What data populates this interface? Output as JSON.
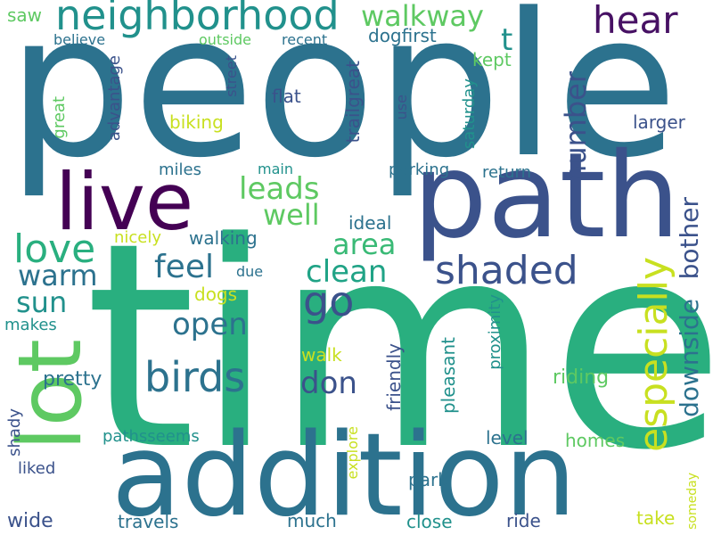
{
  "words": [
    {
      "text": "people",
      "color": "#2c728e"
    },
    {
      "text": "time",
      "color": "#29af7f"
    },
    {
      "text": "path",
      "color": "#3b528b"
    },
    {
      "text": "addition",
      "color": "#2c728e"
    },
    {
      "text": "live",
      "color": "#440154"
    },
    {
      "text": "lot",
      "color": "#5ec962"
    },
    {
      "text": "neighborhood",
      "color": "#21918c"
    },
    {
      "text": "walkway",
      "color": "#5ec962"
    },
    {
      "text": "hear",
      "color": "#471164"
    },
    {
      "text": "t",
      "color": "#21918c"
    },
    {
      "text": "leads",
      "color": "#5ec962"
    },
    {
      "text": "well",
      "color": "#5ec962"
    },
    {
      "text": "love",
      "color": "#29af7f"
    },
    {
      "text": "feel",
      "color": "#2c728e"
    },
    {
      "text": "area",
      "color": "#3aba76"
    },
    {
      "text": "shaded",
      "color": "#3b528b"
    },
    {
      "text": "clean",
      "color": "#20a386"
    },
    {
      "text": "warm",
      "color": "#2c728e"
    },
    {
      "text": "sun",
      "color": "#21918c"
    },
    {
      "text": "go",
      "color": "#3b528b"
    },
    {
      "text": "open",
      "color": "#2c728e"
    },
    {
      "text": "birds",
      "color": "#2c728e"
    },
    {
      "text": "don",
      "color": "#3b528b"
    },
    {
      "text": "especially",
      "color": "#c8e020"
    },
    {
      "text": "downside",
      "color": "#2c728e"
    },
    {
      "text": "bother",
      "color": "#3b528b"
    },
    {
      "text": "number",
      "color": "#3b528b"
    },
    {
      "text": "pretty",
      "color": "#2c728e"
    },
    {
      "text": "riding",
      "color": "#5ec962"
    },
    {
      "text": "saw",
      "color": "#5ec962"
    },
    {
      "text": "believe",
      "color": "#2c728e"
    },
    {
      "text": "outside",
      "color": "#5ec962"
    },
    {
      "text": "recent",
      "color": "#2c728e"
    },
    {
      "text": "dogfirst",
      "color": "#2c728e"
    },
    {
      "text": "kept",
      "color": "#5ec962"
    },
    {
      "text": "advantage",
      "color": "#3b528b"
    },
    {
      "text": "street",
      "color": "#3b528b"
    },
    {
      "text": "great",
      "color": "#5ec962"
    },
    {
      "text": "flat",
      "color": "#3b528b"
    },
    {
      "text": "trailgreat",
      "color": "#3b528b"
    },
    {
      "text": "use",
      "color": "#3b528b"
    },
    {
      "text": "saturday",
      "color": "#21918c"
    },
    {
      "text": "larger",
      "color": "#3b528b"
    },
    {
      "text": "biking",
      "color": "#c8e020"
    },
    {
      "text": "miles",
      "color": "#2c728e"
    },
    {
      "text": "main",
      "color": "#21918c"
    },
    {
      "text": "parking",
      "color": "#2c728e"
    },
    {
      "text": "return",
      "color": "#2c728e"
    },
    {
      "text": "ideal",
      "color": "#2c728e"
    },
    {
      "text": "nicely",
      "color": "#c8e020"
    },
    {
      "text": "walking",
      "color": "#2c728e"
    },
    {
      "text": "due",
      "color": "#2c728e"
    },
    {
      "text": "dogs",
      "color": "#c8e020"
    },
    {
      "text": "makes",
      "color": "#21918c"
    },
    {
      "text": "walk",
      "color": "#c8e020"
    },
    {
      "text": "proximity",
      "color": "#21918c"
    },
    {
      "text": "friendly",
      "color": "#3b528b"
    },
    {
      "text": "pleasant",
      "color": "#21918c"
    },
    {
      "text": "shady",
      "color": "#3b528b"
    },
    {
      "text": "pathsseems",
      "color": "#21918c"
    },
    {
      "text": "explore",
      "color": "#c8e020"
    },
    {
      "text": "homes",
      "color": "#5ec962"
    },
    {
      "text": "level",
      "color": "#2c728e"
    },
    {
      "text": "liked",
      "color": "#3b528b"
    },
    {
      "text": "park",
      "color": "#2c728e"
    },
    {
      "text": "someday",
      "color": "#c8e020"
    },
    {
      "text": "wide",
      "color": "#3b528b"
    },
    {
      "text": "travels",
      "color": "#2c728e"
    },
    {
      "text": "much",
      "color": "#2c728e"
    },
    {
      "text": "close",
      "color": "#21918c"
    },
    {
      "text": "ride",
      "color": "#3b528b"
    },
    {
      "text": "take",
      "color": "#c8e020"
    }
  ]
}
